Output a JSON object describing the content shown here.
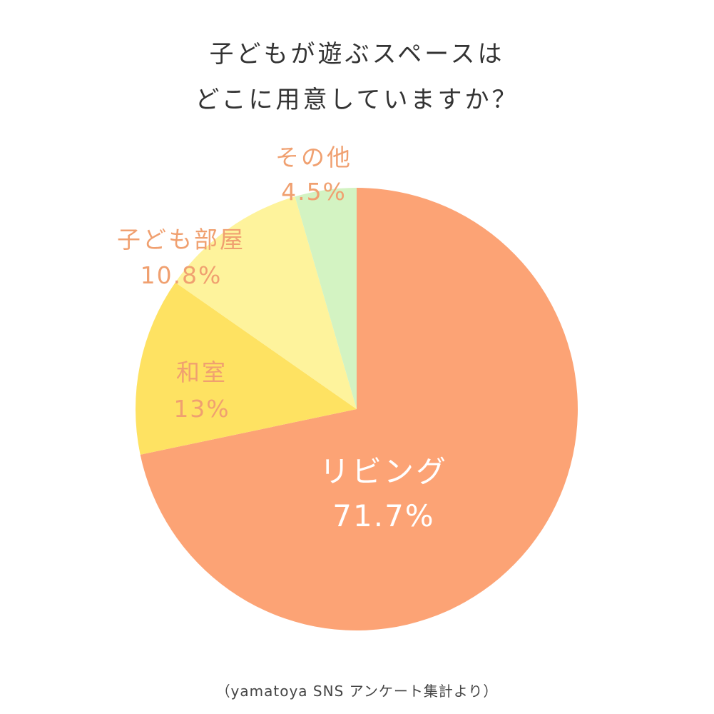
{
  "title_lines": [
    "子どもが遊ぶスペースは",
    "どこに用意していますか？"
  ],
  "footnote": "（yamatoya SNS アンケート集計より）",
  "chart_data": {
    "type": "pie",
    "start_angle_deg": 0,
    "direction": "clockwise",
    "slices": [
      {
        "label": "リビング",
        "value": 71.7,
        "display": "71.7%",
        "color": "#FCA375",
        "label_color": "#FFFFFF"
      },
      {
        "label": "和室",
        "value": 13,
        "display": "13%",
        "color": "#FEE262",
        "label_color": "#F0A070"
      },
      {
        "label": "子ども部屋",
        "value": 10.8,
        "display": "10.8%",
        "color": "#FEF39C",
        "label_color": "#F0A070"
      },
      {
        "label": "その他",
        "value": 4.5,
        "display": "4.5%",
        "color": "#D3F3C2",
        "label_color": "#F0A070"
      }
    ]
  }
}
